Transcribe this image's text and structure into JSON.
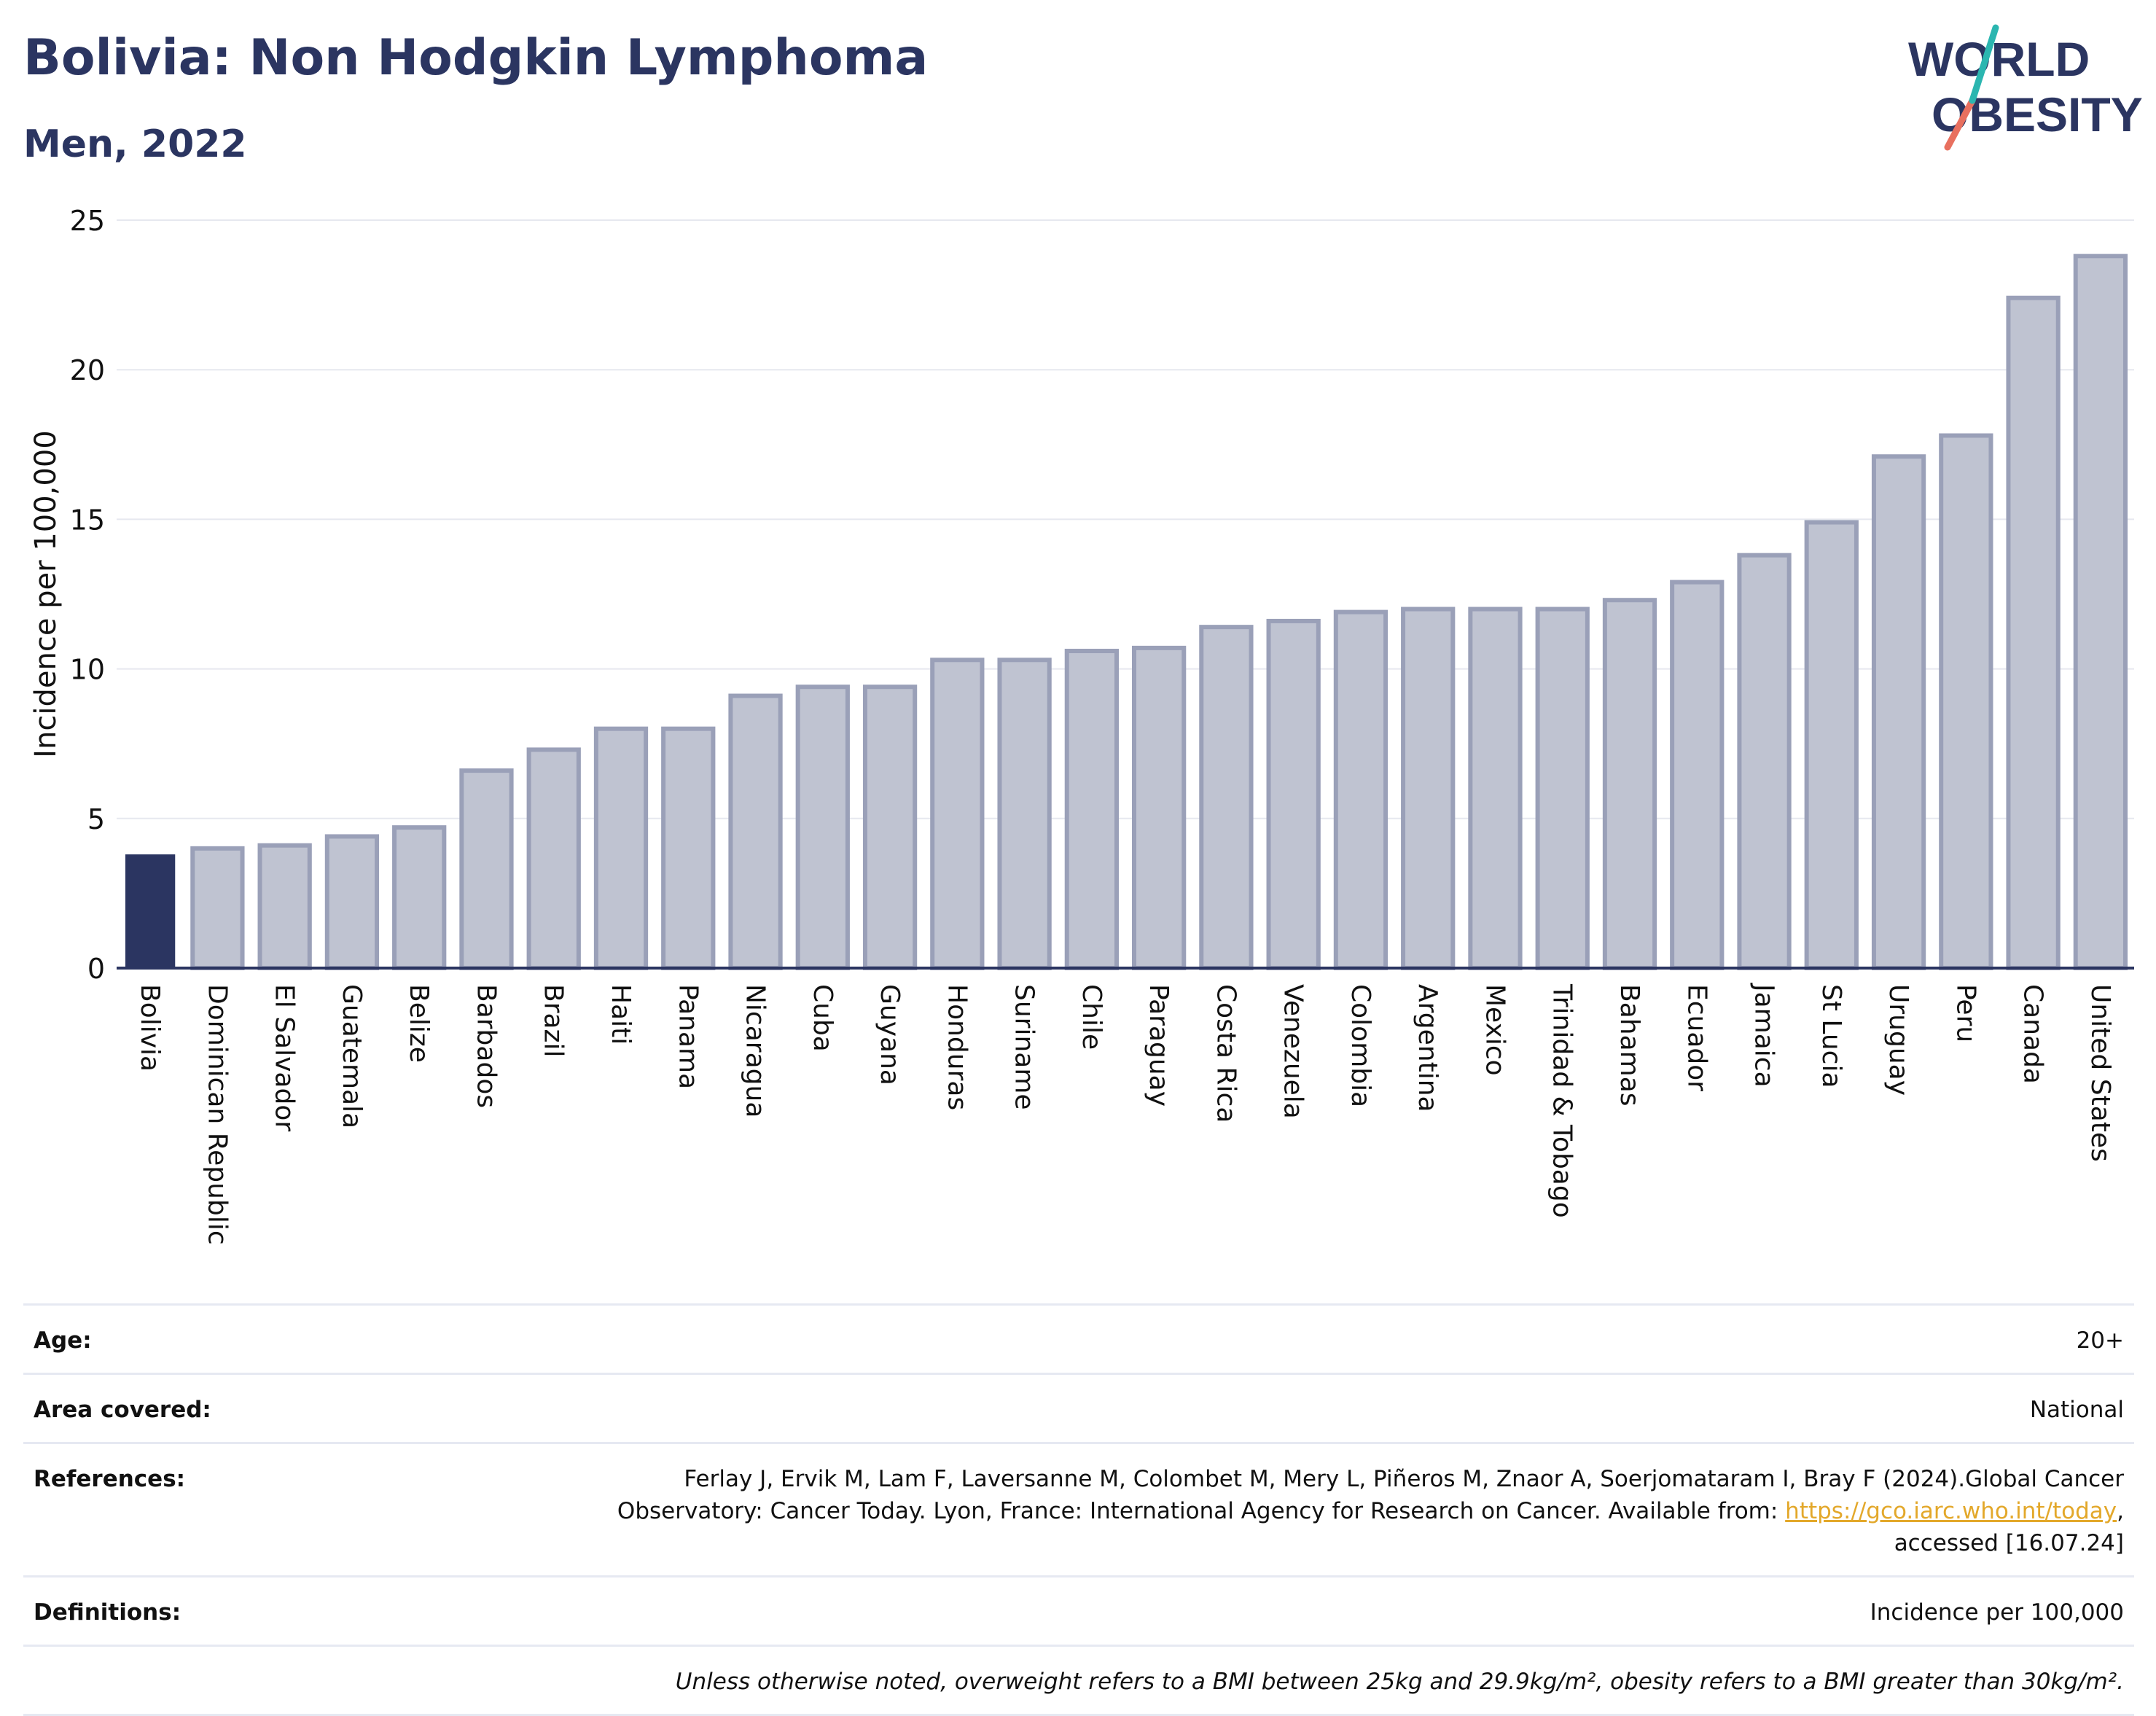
{
  "header": {
    "title": "Bolivia: Non Hodgkin Lymphoma",
    "subtitle": "Men, 2022"
  },
  "logo": {
    "line1": "WORLD",
    "line2": "OBESITY",
    "colors": {
      "text": "#2b3561",
      "slash_top": "#2bb6b0",
      "slash_bottom": "#e8705f"
    }
  },
  "chart_data": {
    "type": "bar",
    "ylabel": "Incidence per 100,000",
    "xlabel": "",
    "ylim": [
      0,
      25
    ],
    "yticks": [
      0,
      5,
      10,
      15,
      20,
      25
    ],
    "grid": true,
    "highlight": "Bolivia",
    "colors": {
      "highlight": "#2b3561",
      "bar": "#bfc3d1",
      "bar_border": "#9aa0b8"
    },
    "categories": [
      "Bolivia",
      "Dominican Republic",
      "El Salvador",
      "Guatemala",
      "Belize",
      "Barbados",
      "Brazil",
      "Haiti",
      "Panama",
      "Nicaragua",
      "Cuba",
      "Guyana",
      "Honduras",
      "Suriname",
      "Chile",
      "Paraguay",
      "Costa Rica",
      "Venezuela",
      "Colombia",
      "Argentina",
      "Mexico",
      "Trinidad & Tobago",
      "Bahamas",
      "Ecuador",
      "Jamaica",
      "St Lucia",
      "Uruguay",
      "Peru",
      "Canada",
      "United States"
    ],
    "values": [
      3.8,
      4.0,
      4.1,
      4.4,
      4.7,
      6.6,
      7.3,
      8.0,
      8.0,
      9.1,
      9.4,
      9.4,
      10.3,
      10.3,
      10.6,
      10.7,
      11.4,
      11.6,
      11.9,
      12.0,
      12.0,
      12.0,
      12.3,
      12.9,
      13.8,
      14.9,
      17.1,
      17.8,
      22.4,
      23.8
    ]
  },
  "meta": {
    "age_label": "Age:",
    "age_value": "20+",
    "area_label": "Area covered:",
    "area_value": "National",
    "references_label": "References:",
    "references_line1": "Ferlay J, Ervik M, Lam F, Laversanne M, Colombet M, Mery L, Piñeros M, Znaor A, Soerjomataram I, Bray F (2024).Global Cancer",
    "references_line2": "Observatory: Cancer Today. Lyon, France: International Agency for Research on Cancer. Available from: ",
    "references_link": "https://gco.iarc.who.int/today",
    "references_line2_end": ",",
    "references_line3": "accessed [16.07.24]",
    "definitions_label": "Definitions:",
    "definitions_value": "Incidence per 100,000",
    "note": "Unless otherwise noted, overweight refers to a BMI between 25kg and 29.9kg/m², obesity refers to a BMI greater than 30kg/m²."
  }
}
